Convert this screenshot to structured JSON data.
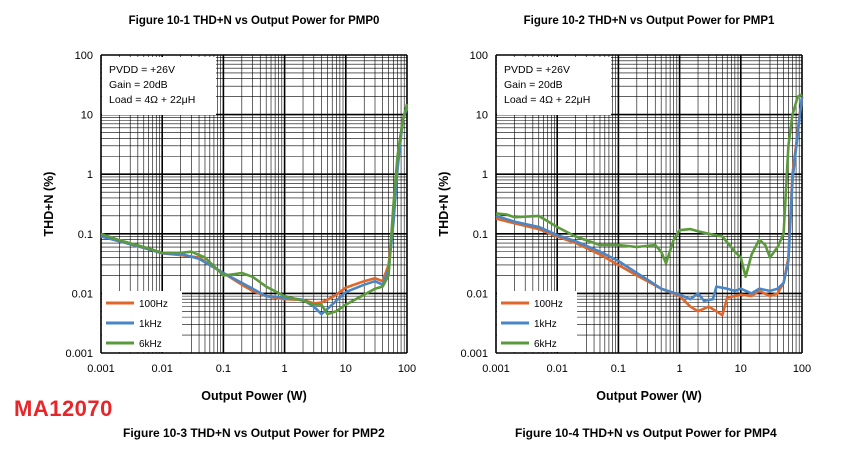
{
  "brand_label": "MA12070",
  "captions": {
    "left": "Figure 10-3 THD+N vs Output Power for PMP2",
    "right": "Figure 10-4 THD+N vs Output Power for PMP4"
  },
  "colors": {
    "100Hz": "#e0662a",
    "1kHz": "#4a86c5",
    "6kHz": "#5b9a3c",
    "grid": "#000000"
  },
  "chart_data": [
    {
      "type": "line",
      "title": "Figure 10-1 THD+N vs Output Power for PMP0",
      "xlabel": "Output Power (W)",
      "ylabel": "THD+N (%)",
      "xscale": "log",
      "yscale": "log",
      "xlim": [
        0.001,
        100
      ],
      "ylim": [
        0.001,
        100
      ],
      "x_ticks": [
        "0.001",
        "0.01",
        "0.1",
        "1",
        "10",
        "100"
      ],
      "y_ticks": [
        "0.001",
        "0.01",
        "0.1",
        "1",
        "10",
        "100"
      ],
      "grid": true,
      "legend_position": "bottom-left",
      "annotation": [
        "PVDD = +26V",
        "Gain = 20dB",
        "Load = 4Ω + 22μH"
      ],
      "series": [
        {
          "name": "100Hz",
          "points": [
            [
              0.001,
              0.092
            ],
            [
              0.002,
              0.075
            ],
            [
              0.005,
              0.058
            ],
            [
              0.01,
              0.047
            ],
            [
              0.02,
              0.044
            ],
            [
              0.04,
              0.04
            ],
            [
              0.06,
              0.03
            ],
            [
              0.1,
              0.022
            ],
            [
              0.2,
              0.014
            ],
            [
              0.3,
              0.011
            ],
            [
              0.5,
              0.009
            ],
            [
              1,
              0.008
            ],
            [
              2,
              0.0078
            ],
            [
              3,
              0.0068
            ],
            [
              4,
              0.007
            ],
            [
              5,
              0.0078
            ],
            [
              7,
              0.0095
            ],
            [
              10,
              0.0125
            ],
            [
              20,
              0.016
            ],
            [
              30,
              0.018
            ],
            [
              40,
              0.016
            ],
            [
              50,
              0.03
            ],
            [
              60,
              0.2
            ],
            [
              70,
              1.5
            ],
            [
              85,
              8
            ],
            [
              100,
              13
            ]
          ]
        },
        {
          "name": "1kHz",
          "points": [
            [
              0.001,
              0.09
            ],
            [
              0.002,
              0.075
            ],
            [
              0.005,
              0.058
            ],
            [
              0.01,
              0.047
            ],
            [
              0.02,
              0.046
            ],
            [
              0.04,
              0.038
            ],
            [
              0.06,
              0.03
            ],
            [
              0.1,
              0.022
            ],
            [
              0.2,
              0.015
            ],
            [
              0.3,
              0.012
            ],
            [
              0.5,
              0.009
            ],
            [
              1,
              0.0085
            ],
            [
              2,
              0.0078
            ],
            [
              3,
              0.006
            ],
            [
              4,
              0.0045
            ],
            [
              5,
              0.0055
            ],
            [
              7,
              0.0075
            ],
            [
              10,
              0.0105
            ],
            [
              20,
              0.014
            ],
            [
              30,
              0.016
            ],
            [
              40,
              0.014
            ],
            [
              50,
              0.025
            ],
            [
              60,
              0.15
            ],
            [
              70,
              1.2
            ],
            [
              85,
              8
            ],
            [
              100,
              13
            ]
          ]
        },
        {
          "name": "6kHz",
          "points": [
            [
              0.001,
              0.1
            ],
            [
              0.002,
              0.078
            ],
            [
              0.005,
              0.06
            ],
            [
              0.01,
              0.048
            ],
            [
              0.02,
              0.048
            ],
            [
              0.03,
              0.05
            ],
            [
              0.05,
              0.04
            ],
            [
              0.08,
              0.025
            ],
            [
              0.1,
              0.02
            ],
            [
              0.15,
              0.021
            ],
            [
              0.2,
              0.022
            ],
            [
              0.3,
              0.019
            ],
            [
              0.5,
              0.013
            ],
            [
              1,
              0.009
            ],
            [
              2,
              0.0075
            ],
            [
              3,
              0.0065
            ],
            [
              4,
              0.0065
            ],
            [
              5,
              0.0045
            ],
            [
              7,
              0.005
            ],
            [
              10,
              0.0065
            ],
            [
              20,
              0.0095
            ],
            [
              30,
              0.012
            ],
            [
              40,
              0.013
            ],
            [
              50,
              0.02
            ],
            [
              60,
              0.3
            ],
            [
              70,
              2
            ],
            [
              85,
              8
            ],
            [
              100,
              15
            ]
          ]
        }
      ]
    },
    {
      "type": "line",
      "title": "Figure 10-2 THD+N vs Output Power for PMP1",
      "xlabel": "Output Power (W)",
      "ylabel": "THD+N (%)",
      "xscale": "log",
      "yscale": "log",
      "xlim": [
        0.001,
        100
      ],
      "ylim": [
        0.001,
        100
      ],
      "x_ticks": [
        "0.001",
        "0.01",
        "0.1",
        "1",
        "10",
        "100"
      ],
      "y_ticks": [
        "0.001",
        "0.01",
        "0.1",
        "1",
        "10",
        "100"
      ],
      "grid": true,
      "legend_position": "bottom-left",
      "annotation": [
        "PVDD = +26V",
        "Gain = 20dB",
        "Load = 4Ω + 22μH"
      ],
      "series": [
        {
          "name": "100Hz",
          "points": [
            [
              0.001,
              0.18
            ],
            [
              0.002,
              0.15
            ],
            [
              0.005,
              0.12
            ],
            [
              0.01,
              0.09
            ],
            [
              0.02,
              0.07
            ],
            [
              0.05,
              0.045
            ],
            [
              0.1,
              0.03
            ],
            [
              0.2,
              0.02
            ],
            [
              0.3,
              0.016
            ],
            [
              0.5,
              0.012
            ],
            [
              1,
              0.009
            ],
            [
              1.5,
              0.006
            ],
            [
              2,
              0.005
            ],
            [
              3,
              0.006
            ],
            [
              4,
              0.005
            ],
            [
              5,
              0.0043
            ],
            [
              6,
              0.0085
            ],
            [
              8,
              0.009
            ],
            [
              10,
              0.0095
            ],
            [
              15,
              0.009
            ],
            [
              20,
              0.011
            ],
            [
              30,
              0.009
            ],
            [
              40,
              0.01
            ],
            [
              50,
              0.015
            ],
            [
              60,
              0.04
            ],
            [
              70,
              1
            ],
            [
              100,
              20
            ]
          ]
        },
        {
          "name": "1kHz",
          "points": [
            [
              0.001,
              0.2
            ],
            [
              0.002,
              0.16
            ],
            [
              0.005,
              0.13
            ],
            [
              0.01,
              0.095
            ],
            [
              0.02,
              0.075
            ],
            [
              0.05,
              0.05
            ],
            [
              0.1,
              0.035
            ],
            [
              0.2,
              0.022
            ],
            [
              0.3,
              0.017
            ],
            [
              0.5,
              0.012
            ],
            [
              1,
              0.0095
            ],
            [
              1.5,
              0.008
            ],
            [
              2,
              0.01
            ],
            [
              2.5,
              0.0075
            ],
            [
              3.5,
              0.008
            ],
            [
              4,
              0.013
            ],
            [
              6,
              0.012
            ],
            [
              8,
              0.011
            ],
            [
              10,
              0.012
            ],
            [
              15,
              0.01
            ],
            [
              20,
              0.012
            ],
            [
              30,
              0.011
            ],
            [
              40,
              0.012
            ],
            [
              50,
              0.015
            ],
            [
              60,
              0.035
            ],
            [
              70,
              0.8
            ],
            [
              100,
              20
            ]
          ]
        },
        {
          "name": "6kHz",
          "points": [
            [
              0.001,
              0.22
            ],
            [
              0.0015,
              0.21
            ],
            [
              0.002,
              0.19
            ],
            [
              0.005,
              0.2
            ],
            [
              0.01,
              0.13
            ],
            [
              0.02,
              0.09
            ],
            [
              0.05,
              0.065
            ],
            [
              0.1,
              0.065
            ],
            [
              0.2,
              0.06
            ],
            [
              0.4,
              0.065
            ],
            [
              0.5,
              0.05
            ],
            [
              0.6,
              0.032
            ],
            [
              0.8,
              0.08
            ],
            [
              1,
              0.115
            ],
            [
              1.5,
              0.12
            ],
            [
              2,
              0.11
            ],
            [
              3,
              0.1
            ],
            [
              5,
              0.09
            ],
            [
              8,
              0.05
            ],
            [
              10,
              0.04
            ],
            [
              12,
              0.019
            ],
            [
              15,
              0.045
            ],
            [
              20,
              0.08
            ],
            [
              25,
              0.065
            ],
            [
              30,
              0.04
            ],
            [
              40,
              0.06
            ],
            [
              50,
              0.1
            ],
            [
              60,
              3
            ],
            [
              70,
              10
            ],
            [
              85,
              20
            ],
            [
              100,
              22
            ]
          ]
        }
      ]
    }
  ]
}
